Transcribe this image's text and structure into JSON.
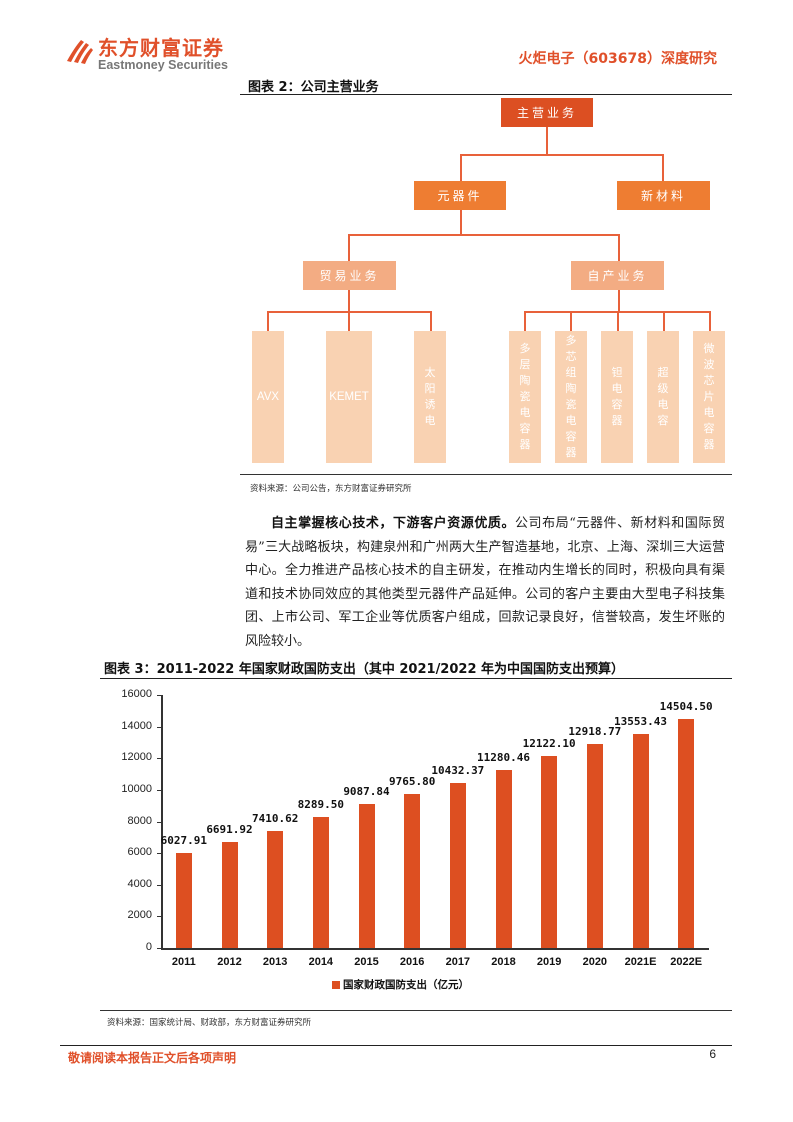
{
  "header": {
    "logo_cn": "东方财富证券",
    "logo_en": "Eastmoney Securities",
    "doc_title": "火炬电子（603678）深度研究"
  },
  "figure2": {
    "caption": "图表 2：公司主营业务",
    "source": "资料来源：公司公告，东方财富证券研究所",
    "root": "主营业务",
    "level1": [
      "元器件",
      "新材料"
    ],
    "level2": [
      "贸易业务",
      "自产业务"
    ],
    "trade_leaves": [
      "AVX",
      "KEMET",
      "太阳诱电"
    ],
    "own_leaves": [
      "多层陶瓷电容器",
      "多芯组陶瓷电容器",
      "钽电容器",
      "超级电容",
      "微波芯片电容器"
    ],
    "colors": {
      "root": "#dc4f22",
      "level1": "#ee7d32",
      "level2": "#f3ac83",
      "leaf": "#f9d2b2",
      "connector": "#e8613a"
    }
  },
  "paragraph": {
    "lead": "自主掌握核心技术，下游客户资源优质。",
    "body": "公司布局“元器件、新材料和国际贸易”三大战略板块，构建泉州和广州两大生产智造基地，北京、上海、深圳三大运营中心。全力推进产品核心技术的自主研发，在推动内生增长的同时，积极向具有渠道和技术协同效应的其他类型元器件产品延伸。公司的客户主要由大型电子科技集团、上市公司、军工企业等优质客户组成，回款记录良好，信誉较高，发生坏账的风险较小。"
  },
  "figure3": {
    "caption": "图表 3：2011-2022 年国家财政国防支出（其中 2021/2022 年为中国国防支出预算）",
    "source": "资料来源：国家统计局、财政部，东方财富证券研究所"
  },
  "chart_data": {
    "type": "bar",
    "title": "2011-2022 年国家财政国防支出（其中 2021/2022 年为中国国防支出预算）",
    "categories": [
      "2011",
      "2012",
      "2013",
      "2014",
      "2015",
      "2016",
      "2017",
      "2018",
      "2019",
      "2020",
      "2021E",
      "2022E"
    ],
    "series": [
      {
        "name": "国家财政国防支出（亿元）",
        "color": "#dd4f21",
        "values": [
          6027.91,
          6691.92,
          7410.62,
          8289.5,
          9087.84,
          9765.8,
          10432.37,
          11280.46,
          12122.1,
          12918.77,
          13553.43,
          14504.5
        ],
        "labels": [
          "6027.91",
          "6691.92",
          "7410.62",
          "8289.50",
          "9087.84",
          "9765.80",
          "10432.37",
          "11280.46",
          "12122.10",
          "12918.77",
          "13553.43",
          "14504.50"
        ]
      }
    ],
    "xlabel": "",
    "ylabel": "",
    "ylim": [
      0,
      16000
    ],
    "yticks": [
      "16000",
      "14000",
      "12000",
      "10000",
      "8000",
      "6000",
      "4000",
      "2000",
      "0"
    ],
    "grid": false,
    "legend_position": "bottom"
  },
  "footer": {
    "disclaimer": "敬请阅读本报告正文后各项声明",
    "page_number": "6"
  }
}
